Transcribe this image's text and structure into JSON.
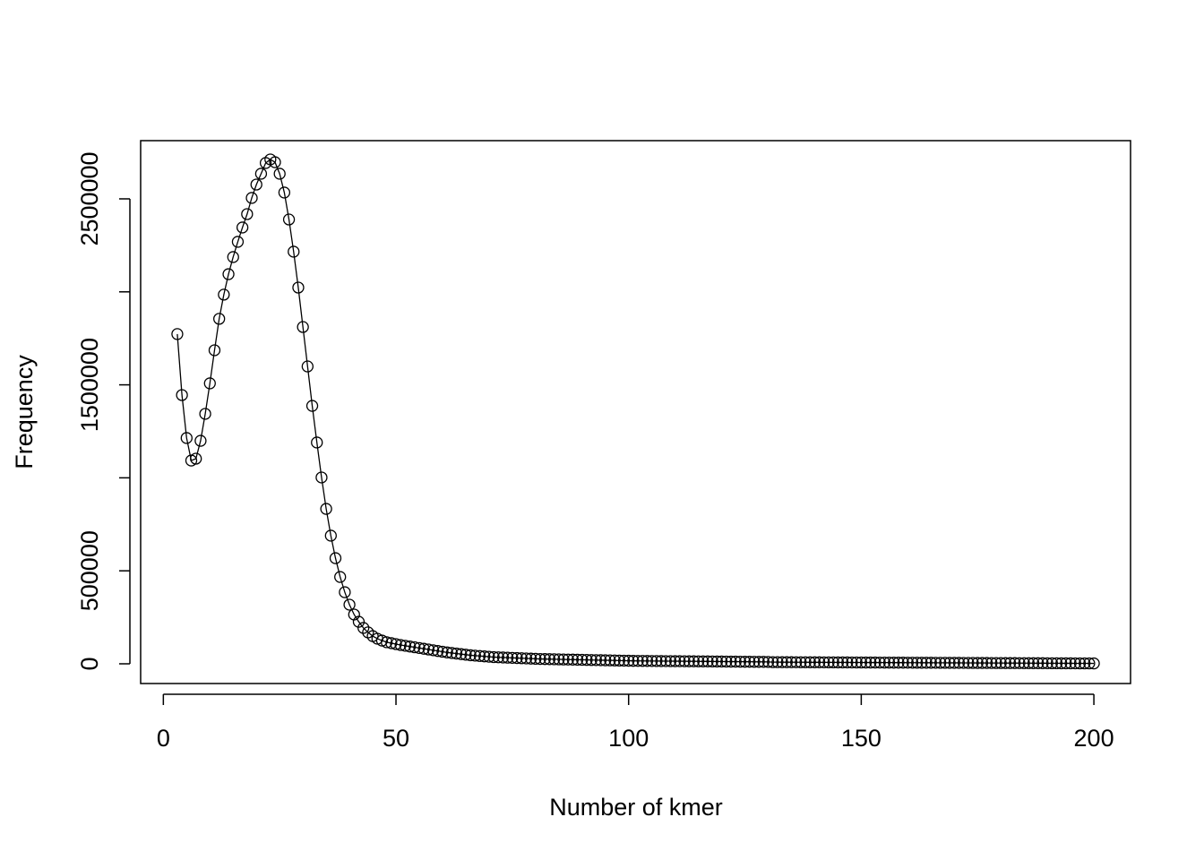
{
  "chart_data": {
    "type": "line",
    "xlabel": "Number of kmer",
    "ylabel": "Frequency",
    "x": [
      3,
      4,
      5,
      6,
      7,
      8,
      9,
      10,
      11,
      12,
      13,
      14,
      15,
      16,
      17,
      18,
      19,
      20,
      21,
      22,
      23,
      24,
      25,
      26,
      27,
      28,
      29,
      30,
      31,
      32,
      33,
      34,
      35,
      36,
      37,
      38,
      39,
      40,
      41,
      42,
      43,
      44,
      45,
      46,
      47,
      48,
      49,
      50,
      51,
      52,
      53,
      54,
      55,
      56,
      57,
      58,
      59,
      60,
      61,
      62,
      63,
      64,
      65,
      66,
      67,
      68,
      69,
      70,
      71,
      72,
      73,
      74,
      75,
      76,
      77,
      78,
      79,
      80,
      81,
      82,
      83,
      84,
      85,
      86,
      87,
      88,
      89,
      90,
      91,
      92,
      93,
      94,
      95,
      96,
      97,
      98,
      99,
      100,
      101,
      102,
      103,
      104,
      105,
      106,
      107,
      108,
      109,
      110,
      111,
      112,
      113,
      114,
      115,
      116,
      117,
      118,
      119,
      120,
      121,
      122,
      123,
      124,
      125,
      126,
      127,
      128,
      129,
      130,
      131,
      132,
      133,
      134,
      135,
      136,
      137,
      138,
      139,
      140,
      141,
      142,
      143,
      144,
      145,
      146,
      147,
      148,
      149,
      150,
      151,
      152,
      153,
      154,
      155,
      156,
      157,
      158,
      159,
      160,
      161,
      162,
      163,
      164,
      165,
      166,
      167,
      168,
      169,
      170,
      171,
      172,
      173,
      174,
      175,
      176,
      177,
      178,
      179,
      180,
      181,
      182,
      183,
      184,
      185,
      186,
      187,
      188,
      189,
      190,
      191,
      192,
      193,
      194,
      195,
      196,
      197,
      198,
      199,
      200
    ],
    "values": [
      1773000,
      1445000,
      1214000,
      1093000,
      1103000,
      1199000,
      1344000,
      1508000,
      1686000,
      1855000,
      1985000,
      2095000,
      2187000,
      2269000,
      2346000,
      2418000,
      2505000,
      2577000,
      2635000,
      2693000,
      2712000,
      2697000,
      2635000,
      2534000,
      2389000,
      2216000,
      2023000,
      1811000,
      1599000,
      1387000,
      1190000,
      1002000,
      833000,
      689000,
      568000,
      467000,
      385000,
      318000,
      265000,
      226000,
      193000,
      169000,
      149000,
      135000,
      125000,
      116000,
      111000,
      106000,
      101000,
      97000,
      93000,
      89000,
      85000,
      81000,
      77000,
      73000,
      69000,
      65000,
      61000,
      58000,
      55000,
      52000,
      49000,
      46000,
      44000,
      42000,
      40000,
      38000,
      36000,
      35000,
      34000,
      33000,
      32000,
      31000,
      30000,
      29000,
      28000,
      27000,
      26000,
      25500,
      25000,
      24500,
      24000,
      23500,
      23000,
      22500,
      22000,
      21500,
      21000,
      20500,
      20000,
      19500,
      19000,
      18500,
      18000,
      17500,
      17000,
      16500,
      16000,
      15800,
      15600,
      15400,
      15200,
      15000,
      14800,
      14600,
      14400,
      14200,
      14000,
      13800,
      13600,
      13400,
      13200,
      13000,
      12800,
      12600,
      12400,
      12200,
      12000,
      11800,
      11600,
      11400,
      11200,
      11000,
      10800,
      10600,
      10400,
      10200,
      9000,
      8900,
      8800,
      8700,
      8600,
      8500,
      8400,
      8300,
      8200,
      8100,
      8000,
      7900,
      7800,
      7700,
      7600,
      7500,
      7400,
      7300,
      7200,
      7100,
      7000,
      6900,
      6800,
      6700,
      6600,
      6500,
      6400,
      6300,
      6200,
      6100,
      6000,
      5900,
      5800,
      5700,
      5600,
      5500,
      5400,
      5300,
      5200,
      5100,
      5000,
      4900,
      4800,
      4700,
      4600,
      4500,
      4400,
      4300,
      4200,
      4100,
      4000,
      3900,
      3800,
      3700,
      3600,
      3500,
      3400,
      3300,
      3200,
      3100,
      3000,
      2900,
      2800,
      2700,
      2600,
      2500,
      2400,
      2300,
      2200,
      2100
    ],
    "color": "#000000",
    "xlim": [
      -4.88,
      207.88
    ],
    "xticks": [
      0,
      50,
      100,
      150,
      200
    ],
    "ylim": [
      -106000,
      2813000
    ],
    "yticks": [
      0,
      500000,
      {
        "value": 1000000,
        "label": null
      },
      1500000,
      {
        "value": 2000000,
        "label": null
      },
      2500000
    ]
  }
}
